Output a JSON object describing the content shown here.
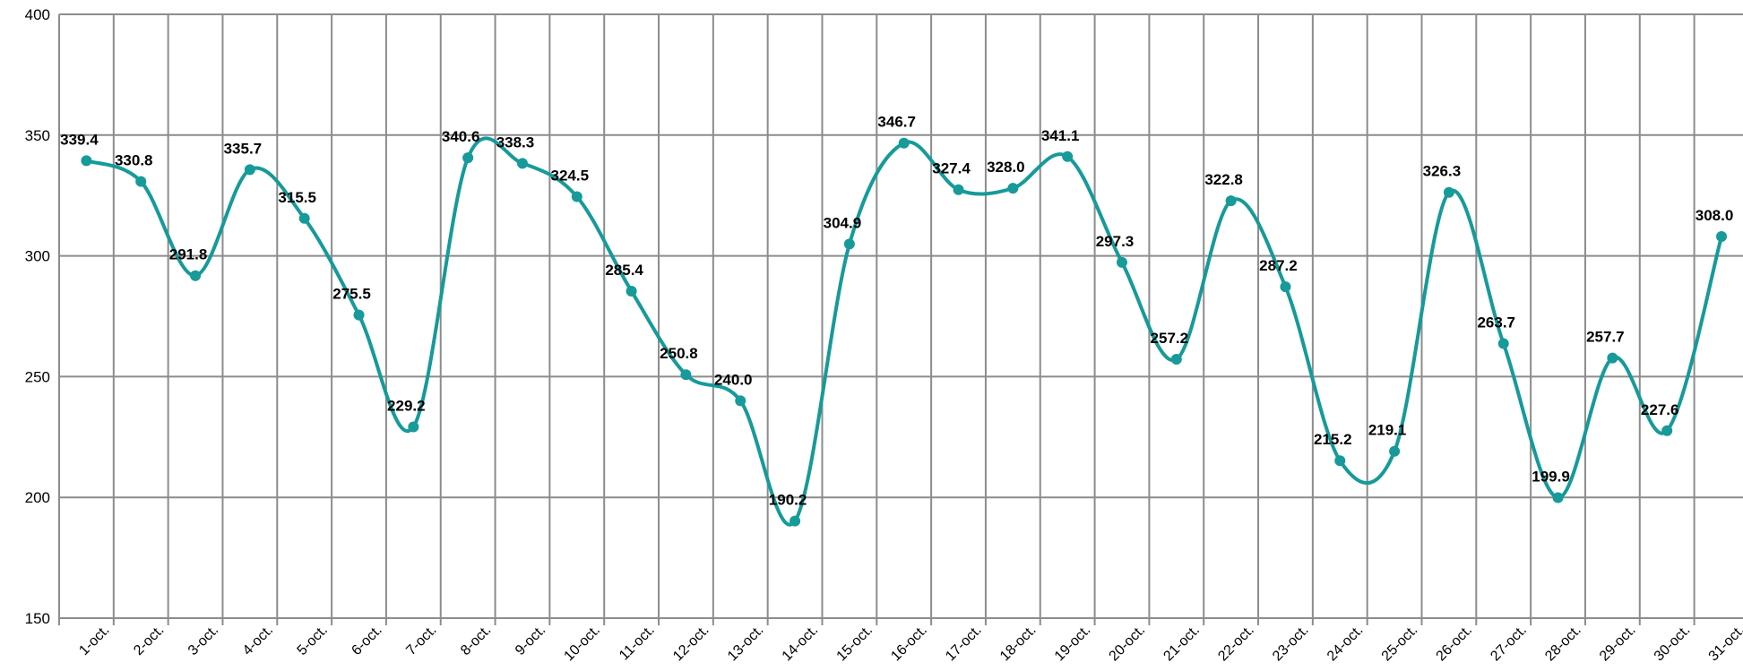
{
  "chart_data": {
    "type": "line",
    "categories": [
      "1-oct.",
      "2-oct.",
      "3-oct.",
      "4-oct.",
      "5-oct.",
      "6-oct.",
      "7-oct.",
      "8-oct.",
      "9-oct.",
      "10-oct.",
      "11-oct.",
      "12-oct.",
      "13-oct.",
      "14-oct.",
      "15-oct.",
      "16-oct.",
      "17-oct.",
      "18-oct.",
      "19-oct.",
      "20-oct.",
      "21-oct.",
      "22-oct.",
      "23-oct.",
      "24-oct.",
      "25-oct.",
      "26-oct.",
      "27-oct.",
      "28-oct.",
      "29-oct.",
      "30-oct.",
      "31-oct."
    ],
    "values": [
      339.4,
      330.8,
      291.8,
      335.7,
      315.5,
      275.5,
      229.2,
      340.6,
      338.3,
      324.5,
      285.4,
      250.8,
      240.0,
      190.2,
      304.9,
      346.7,
      327.4,
      328.0,
      341.1,
      297.3,
      257.2,
      322.8,
      287.2,
      215.2,
      219.1,
      326.3,
      263.7,
      199.9,
      257.7,
      227.6,
      308.0
    ],
    "value_labels": [
      "339.4",
      "330.8",
      "291.8",
      "335.7",
      "315.5",
      "275.5",
      "229.2",
      "340.6",
      "338.3",
      "324.5",
      "285.4",
      "250.8",
      "240.0",
      "190.2",
      "304.9",
      "346.7",
      "327.4",
      "328.0",
      "341.1",
      "297.3",
      "257.2",
      "322.8",
      "287.2",
      "215.2",
      "219.1",
      "326.3",
      "263.7",
      "199.9",
      "257.7",
      "227.6",
      "308.0"
    ],
    "color": "#169a9a",
    "smooth": true,
    "grid": true,
    "ylim": [
      150,
      400
    ],
    "yticks": [
      150,
      200,
      250,
      300,
      350,
      400
    ]
  }
}
